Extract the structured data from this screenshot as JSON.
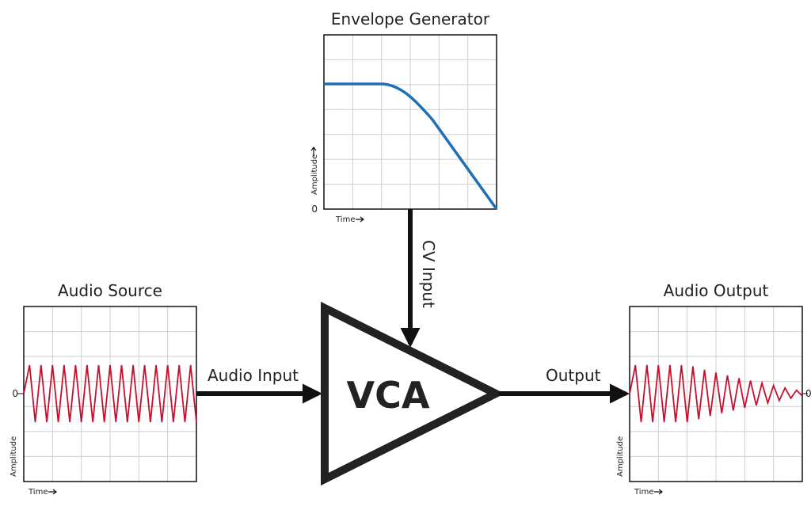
{
  "titles": {
    "envelope": "Envelope Generator",
    "source": "Audio Source",
    "output": "Audio Output"
  },
  "labels": {
    "cv_input": "CV Input",
    "audio_input": "Audio Input",
    "output": "Output",
    "vca": "VCA",
    "amplitude": "Amplitude",
    "time": "Time",
    "zero": "0"
  },
  "colors": {
    "envelope_curve": "#1f6fb5",
    "audio_wave": "#c8102e",
    "arrows": "#111111",
    "grid": "#cfcfcf"
  },
  "icons": {
    "time_arrow": "arrow-right-icon",
    "amplitude_arrow": "arrow-up-icon"
  },
  "envelope_shape": {
    "sustain_until": 0.33,
    "decay_end": 1.0
  },
  "audio_source": {
    "cycles": 15,
    "amplitude": 1.0
  },
  "audio_output": {
    "cycles": 15,
    "decay_start": 0.35,
    "final_amplitude": 0.08
  }
}
